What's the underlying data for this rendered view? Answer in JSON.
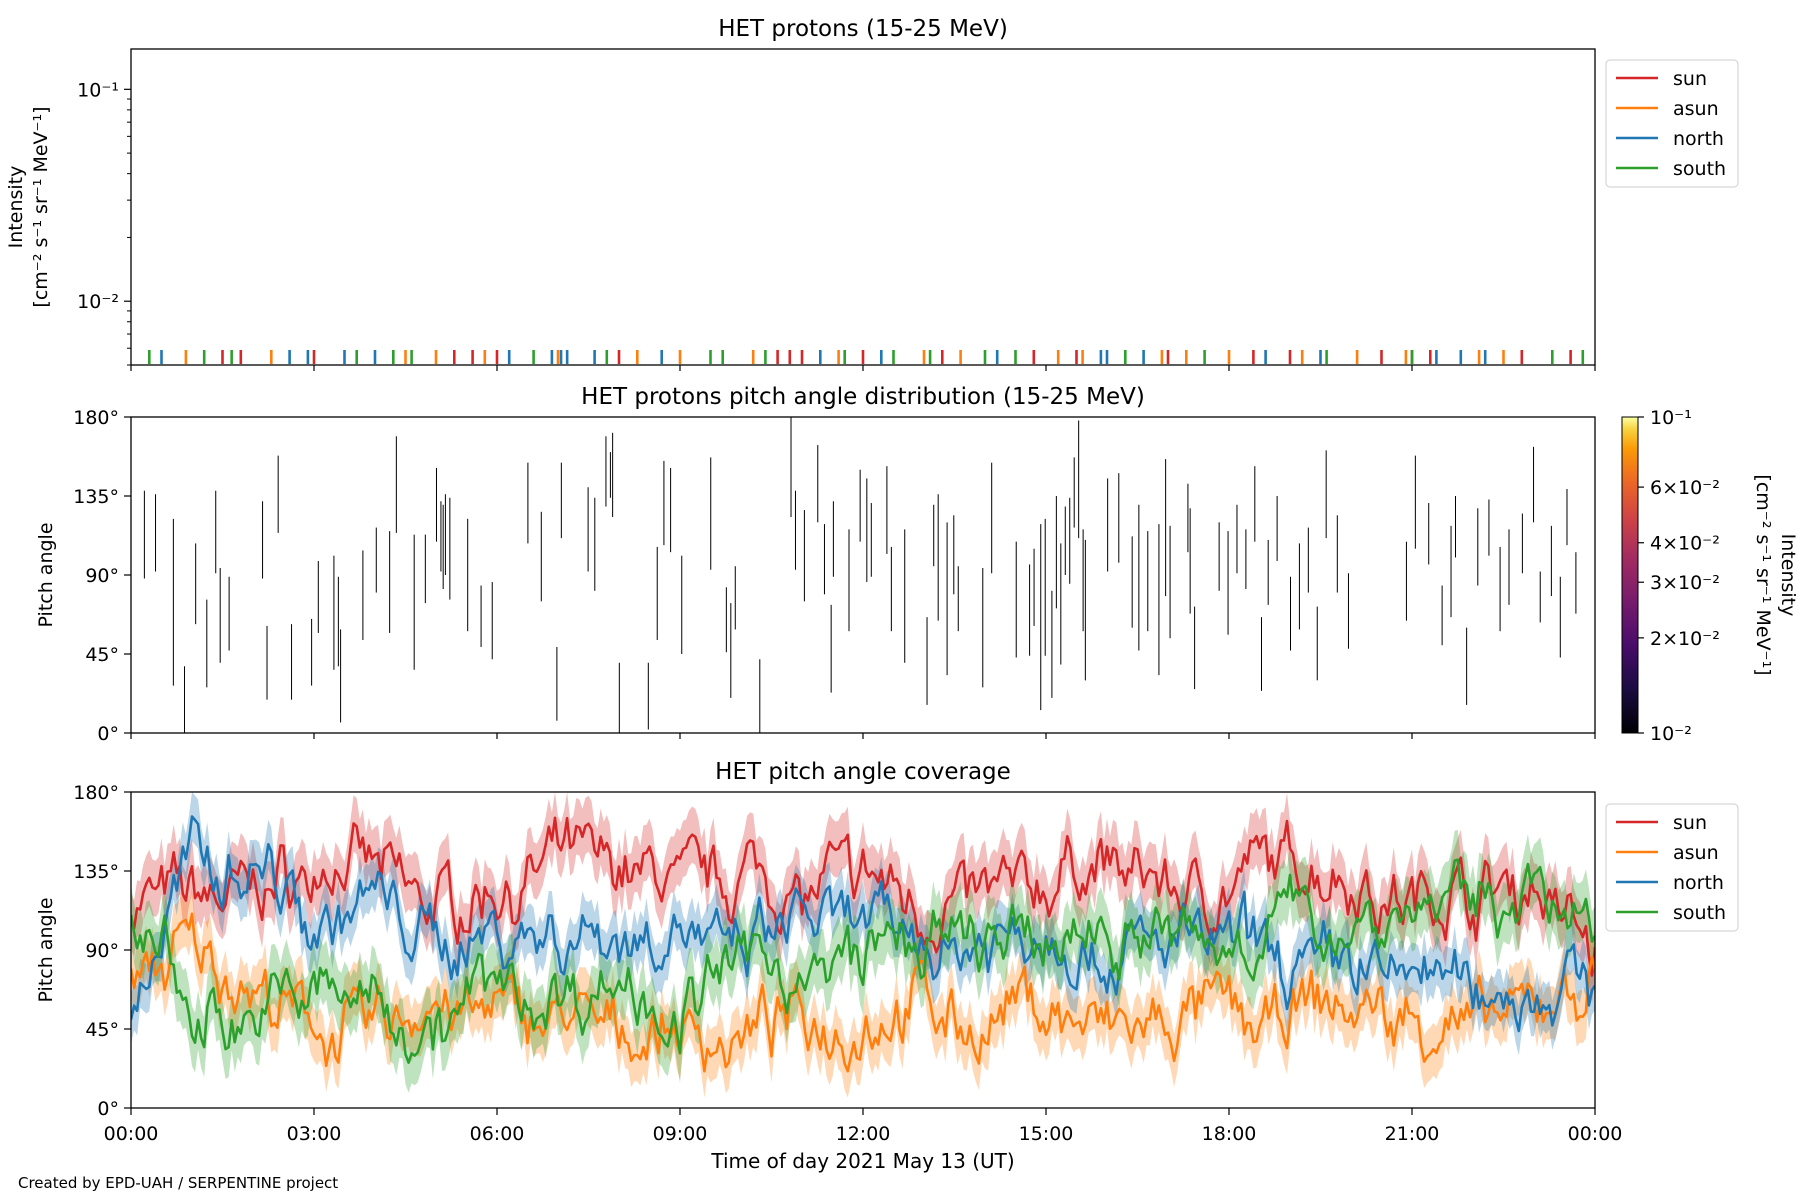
{
  "footer": "Created by EPD-UAH / SERPENTINE project",
  "colors": {
    "sun": "#d62728",
    "asun": "#ff7f0e",
    "north": "#1f77b4",
    "south": "#2ca02c"
  },
  "chart_data": [
    {
      "type": "scatter",
      "title": "HET protons (15-25 MeV)",
      "ylabel_line1": "Intensity",
      "ylabel_line2": "[cm⁻² s⁻¹ sr⁻¹ MeV⁻¹]",
      "yscale": "log",
      "ylim": [
        0.005,
        0.155
      ],
      "yticks": [
        {
          "value": 0.1,
          "label": "10⁻¹"
        },
        {
          "value": 0.01,
          "label": "10⁻²"
        }
      ],
      "legend_position": "outside-right",
      "legend": [
        "sun",
        "asun",
        "north",
        "south"
      ],
      "note": "only short near-zero marks at the bottom of the panel are visible",
      "series": [
        {
          "name": "sun",
          "color": "#d62728",
          "x_hours": [
            1.5,
            1.8,
            3.0,
            5.3,
            5.6,
            6.0,
            8.0,
            10.6,
            10.8,
            11.0,
            12.0,
            13.3,
            14.8,
            15.5,
            17.0,
            18.4,
            19.0,
            20.5,
            21.0,
            21.3,
            22.8,
            23.6
          ]
        },
        {
          "name": "asun",
          "color": "#ff7f0e",
          "x_hours": [
            0.9,
            2.3,
            4.5,
            5.0,
            5.8,
            7.0,
            8.3,
            9.0,
            10.2,
            11.6,
            13.0,
            13.6,
            15.2,
            15.6,
            16.9,
            17.3,
            18.0,
            19.2,
            20.1,
            20.9,
            22.1,
            22.5
          ]
        },
        {
          "name": "north",
          "color": "#1f77b4",
          "x_hours": [
            0.5,
            2.6,
            2.9,
            3.5,
            4.0,
            6.2,
            6.9,
            7.05,
            7.15,
            7.6,
            8.7,
            11.3,
            12.3,
            14.2,
            15.9,
            16.0,
            16.6,
            18.6,
            19.5,
            21.4,
            21.8,
            22.2
          ]
        },
        {
          "name": "south",
          "color": "#2ca02c",
          "x_hours": [
            0.3,
            1.2,
            1.65,
            3.7,
            4.3,
            4.6,
            6.6,
            7.8,
            9.5,
            9.7,
            10.4,
            11.7,
            12.5,
            13.1,
            14.0,
            14.5,
            16.3,
            17.6,
            19.6,
            21.0,
            23.3,
            23.8
          ]
        }
      ]
    },
    {
      "type": "heatmap",
      "title": "HET protons pitch angle distribution (15-25 MeV)",
      "ylabel": "Pitch angle",
      "ylim": [
        0,
        180
      ],
      "yticks": [
        "0°",
        "45°",
        "90°",
        "135°",
        "180°"
      ],
      "colorbar": {
        "label_line1": "Intensity",
        "label_line2": "[cm⁻² s⁻¹ sr⁻¹ MeV⁻¹]",
        "scale": "log",
        "range": [
          0.01,
          0.1
        ],
        "ticks": [
          {
            "value": 0.1,
            "label": "10⁻¹"
          },
          {
            "value": 0.06,
            "label": "6×10⁻²"
          },
          {
            "value": 0.04,
            "label": "4×10⁻²"
          },
          {
            "value": 0.03,
            "label": "3×10⁻²"
          },
          {
            "value": 0.02,
            "label": "2×10⁻²"
          },
          {
            "value": 0.01,
            "label": "10⁻²"
          }
        ]
      },
      "marks": [
        [
          0.3,
          88,
          138
        ],
        [
          0.55,
          92,
          136
        ],
        [
          0.95,
          27,
          122
        ],
        [
          1.2,
          0,
          38
        ],
        [
          1.45,
          62,
          108
        ],
        [
          1.7,
          26,
          76
        ],
        [
          1.9,
          91,
          138
        ],
        [
          2.0,
          40,
          94
        ],
        [
          2.2,
          47,
          89
        ],
        [
          2.95,
          88,
          132
        ],
        [
          3.05,
          19,
          61
        ],
        [
          3.3,
          114,
          158
        ],
        [
          3.6,
          19,
          62
        ],
        [
          4.05,
          27,
          65
        ],
        [
          4.2,
          57,
          98
        ],
        [
          4.55,
          36,
          101
        ],
        [
          4.65,
          38,
          89
        ],
        [
          4.7,
          6,
          59
        ],
        [
          5.2,
          53,
          104
        ],
        [
          5.5,
          80,
          117
        ],
        [
          5.8,
          57,
          115
        ],
        [
          5.95,
          114,
          169
        ],
        [
          6.35,
          36,
          113
        ],
        [
          6.6,
          74,
          113
        ],
        [
          6.85,
          109,
          151
        ],
        [
          6.95,
          92,
          132
        ],
        [
          7.0,
          82,
          130
        ],
        [
          7.05,
          90,
          136
        ],
        [
          7.15,
          76,
          134
        ],
        [
          7.55,
          58,
          122
        ],
        [
          7.85,
          49,
          84
        ],
        [
          8.1,
          42,
          86
        ],
        [
          8.9,
          108,
          154
        ],
        [
          9.2,
          75,
          126
        ],
        [
          9.55,
          7,
          49
        ],
        [
          9.65,
          111,
          154
        ],
        [
          10.25,
          92,
          140
        ],
        [
          10.4,
          81,
          134
        ],
        [
          10.65,
          129,
          169
        ],
        [
          10.75,
          134,
          160
        ],
        [
          10.8,
          123,
          171
        ],
        [
          10.95,
          0,
          40
        ],
        [
          11.6,
          2,
          40
        ],
        [
          11.8,
          53,
          106
        ],
        [
          11.95,
          107,
          155
        ],
        [
          12.1,
          103,
          151
        ],
        [
          12.35,
          45,
          101
        ],
        [
          13.0,
          93,
          157
        ],
        [
          13.35,
          46,
          83
        ],
        [
          13.45,
          20,
          74
        ],
        [
          13.55,
          59,
          95
        ],
        [
          14.1,
          0,
          42
        ],
        [
          14.8,
          123,
          180
        ],
        [
          14.9,
          93,
          138
        ],
        [
          15.1,
          75,
          127
        ],
        [
          15.4,
          120,
          164
        ],
        [
          15.55,
          79,
          119
        ],
        [
          15.7,
          23,
          73
        ],
        [
          15.75,
          89,
          132
        ],
        [
          16.1,
          58,
          116
        ],
        [
          16.35,
          109,
          150
        ],
        [
          16.5,
          86,
          145
        ],
        [
          16.6,
          89,
          131
        ],
        [
          16.95,
          102,
          152
        ],
        [
          17.05,
          58,
          106
        ],
        [
          17.35,
          40,
          116
        ],
        [
          17.85,
          16,
          66
        ],
        [
          18.0,
          95,
          130
        ],
        [
          18.1,
          64,
          136
        ],
        [
          18.3,
          33,
          120
        ],
        [
          18.45,
          79,
          124
        ],
        [
          18.55,
          58,
          95
        ],
        [
          19.1,
          26,
          94
        ],
        [
          19.3,
          91,
          154
        ],
        [
          19.85,
          43,
          109
        ],
        [
          20.15,
          44,
          96
        ],
        [
          20.25,
          61,
          105
        ],
        [
          20.4,
          13,
          119
        ],
        [
          20.5,
          44,
          122
        ],
        [
          20.65,
          20,
          81
        ],
        [
          20.75,
          71,
          135
        ],
        [
          20.85,
          39,
          108
        ],
        [
          20.95,
          90,
          129
        ],
        [
          21.05,
          85,
          134
        ],
        [
          21.15,
          117,
          157
        ],
        [
          21.25,
          111,
          178
        ],
        [
          21.35,
          58,
          116
        ],
        [
          21.4,
          30,
          110
        ],
        [
          21.9,
          92,
          145
        ],
        [
          22.15,
          97,
          148
        ],
        [
          22.45,
          60,
          112
        ],
        [
          22.6,
          47,
          130
        ],
        [
          22.8,
          58,
          115
        ],
        [
          23.05,
          33,
          119
        ],
        [
          23.2,
          78,
          156
        ],
        [
          23.3,
          54,
          118
        ],
        [
          23.7,
          103,
          142
        ],
        [
          23.75,
          68,
          128
        ],
        [
          23.85,
          25,
          72
        ],
        [
          24.4,
          81,
          120
        ],
        [
          24.6,
          56,
          115
        ],
        [
          24.8,
          91,
          130
        ],
        [
          25.0,
          82,
          116
        ],
        [
          25.2,
          109,
          152
        ],
        [
          25.35,
          24,
          66
        ],
        [
          25.5,
          73,
          110
        ],
        [
          25.7,
          98,
          135
        ],
        [
          26.0,
          47,
          89
        ],
        [
          26.2,
          59,
          108
        ],
        [
          26.4,
          80,
          117
        ],
        [
          26.6,
          30,
          72
        ],
        [
          26.8,
          111,
          161
        ],
        [
          27.05,
          80,
          124
        ],
        [
          27.3,
          48,
          91
        ],
        [
          28.6,
          64,
          109
        ],
        [
          28.8,
          105,
          158
        ],
        [
          29.1,
          96,
          131
        ],
        [
          29.4,
          50,
          84
        ],
        [
          29.6,
          66,
          118
        ],
        [
          29.7,
          100,
          135
        ],
        [
          29.95,
          16,
          60
        ],
        [
          30.2,
          84,
          128
        ],
        [
          30.45,
          101,
          133
        ],
        [
          30.7,
          58,
          106
        ],
        [
          30.9,
          73,
          116
        ],
        [
          31.2,
          91,
          125
        ],
        [
          31.45,
          120,
          163
        ],
        [
          31.6,
          63,
          92
        ],
        [
          31.85,
          78,
          118
        ],
        [
          32.05,
          43,
          89
        ],
        [
          32.2,
          107,
          139
        ],
        [
          32.4,
          68,
          103
        ]
      ]
    },
    {
      "type": "line",
      "title": "HET pitch angle coverage",
      "ylabel": "Pitch angle",
      "xlabel": "Time of day 2021 May 13 (UT)",
      "ylim": [
        0,
        180
      ],
      "xlim_hours": [
        0,
        24
      ],
      "xticks": [
        "00:00",
        "03:00",
        "06:00",
        "09:00",
        "12:00",
        "15:00",
        "18:00",
        "21:00",
        "00:00"
      ],
      "yticks": [
        "0°",
        "45°",
        "90°",
        "135°",
        "180°"
      ],
      "legend_position": "outside-right",
      "legend": [
        "sun",
        "asun",
        "north",
        "south"
      ],
      "series": [
        {
          "name": "sun",
          "color": "#d62728",
          "anchor_hours": [
            0,
            1,
            2,
            3,
            4,
            5,
            6,
            7,
            8,
            9,
            10,
            11,
            12,
            13,
            14,
            15,
            16,
            17,
            18,
            19,
            20,
            21,
            22,
            23,
            24
          ],
          "anchor_values": [
            115,
            122,
            128,
            135,
            131,
            117,
            126,
            134,
            140,
            133,
            138,
            126,
            130,
            116,
            123,
            128,
            140,
            128,
            126,
            137,
            134,
            118,
            123,
            130,
            96
          ],
          "band_halfwidth": 16
        },
        {
          "name": "asun",
          "color": "#ff7f0e",
          "anchor_hours": [
            0,
            1,
            2,
            3,
            4,
            5,
            6,
            7,
            8,
            9,
            10,
            11,
            12,
            13,
            14,
            15,
            16,
            17,
            18,
            19,
            20,
            21,
            22,
            23,
            24
          ],
          "anchor_values": [
            72,
            88,
            64,
            38,
            51,
            58,
            48,
            53,
            40,
            43,
            38,
            44,
            51,
            60,
            48,
            55,
            42,
            38,
            51,
            48,
            55,
            48,
            46,
            52,
            72
          ],
          "band_halfwidth": 15
        },
        {
          "name": "north",
          "color": "#1f77b4",
          "anchor_hours": [
            0,
            1,
            2,
            3,
            4,
            5,
            6,
            7,
            8,
            9,
            10,
            11,
            12,
            13,
            14,
            15,
            16,
            17,
            18,
            19,
            20,
            21,
            22,
            23,
            24
          ],
          "anchor_values": [
            55,
            142,
            150,
            115,
            117,
            88,
            107,
            102,
            98,
            100,
            81,
            102,
            97,
            92,
            101,
            102,
            86,
            97,
            96,
            84,
            93,
            80,
            76,
            62,
            72
          ],
          "band_halfwidth": 14
        },
        {
          "name": "south",
          "color": "#2ca02c",
          "anchor_hours": [
            0,
            1,
            2,
            3,
            4,
            5,
            6,
            7,
            8,
            9,
            10,
            11,
            12,
            13,
            14,
            15,
            16,
            17,
            18,
            19,
            20,
            21,
            22,
            23,
            24
          ],
          "anchor_values": [
            118,
            46,
            58,
            72,
            60,
            56,
            72,
            63,
            68,
            61,
            82,
            73,
            88,
            96,
            88,
            90,
            96,
            102,
            92,
            103,
            104,
            112,
            122,
            126,
            90
          ],
          "band_halfwidth": 17
        }
      ]
    }
  ]
}
